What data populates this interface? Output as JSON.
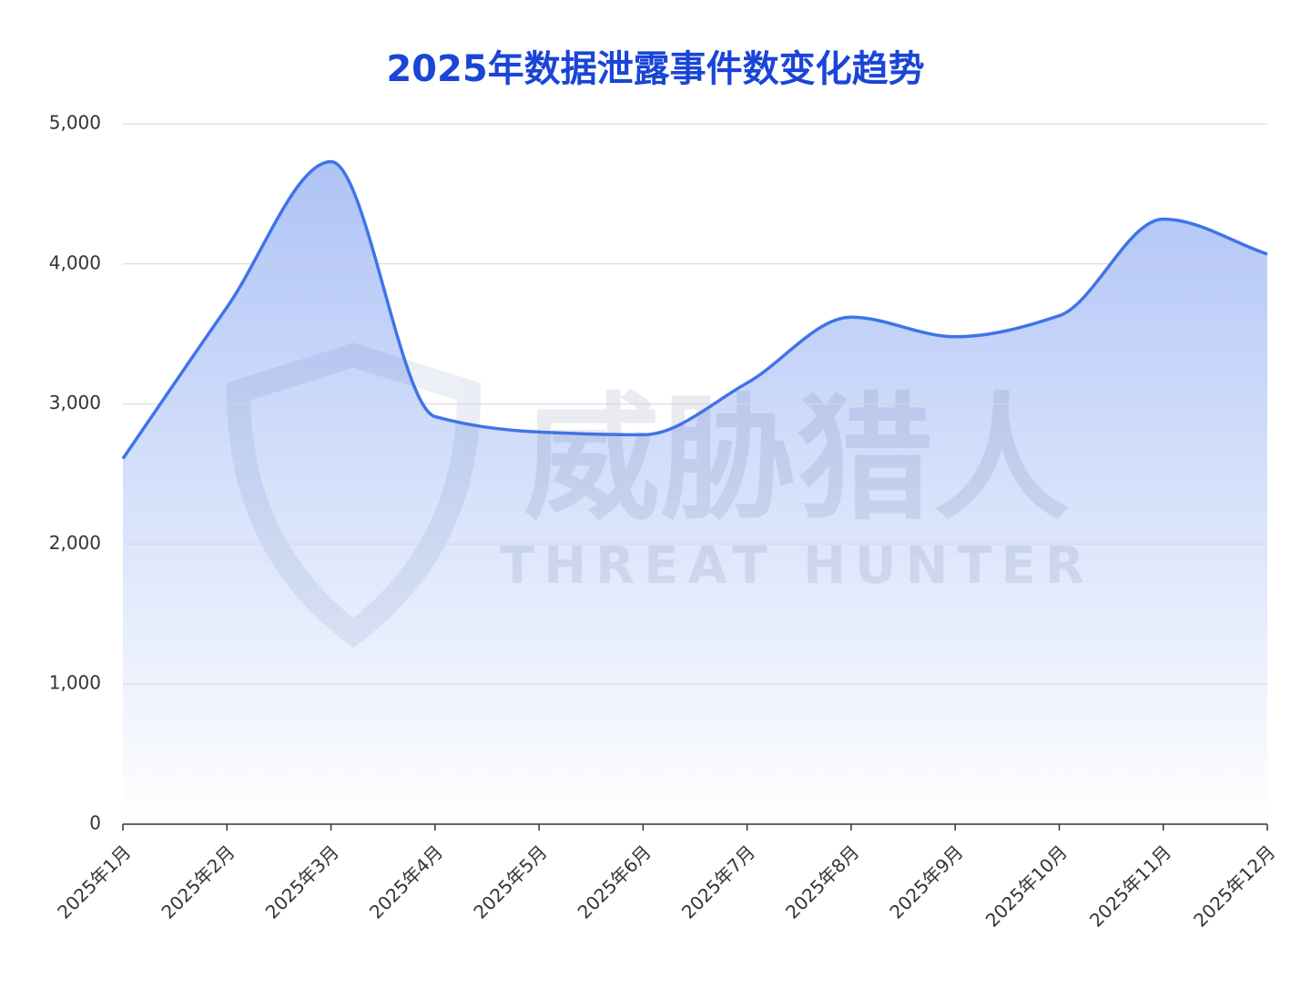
{
  "chart_data": {
    "type": "area",
    "title": "2025年数据泄露事件数变化趋势",
    "categories": [
      "2025年1月",
      "2025年2月",
      "2025年3月",
      "2025年4月",
      "2025年5月",
      "2025年6月",
      "2025年7月",
      "2025年8月",
      "2025年9月",
      "2025年10月",
      "2025年11月",
      "2025年12月"
    ],
    "values": [
      2610,
      3690,
      4730,
      2910,
      2800,
      2780,
      3150,
      3620,
      3480,
      3630,
      4320,
      4070
    ],
    "color": "#3f74e8",
    "ylim": [
      0,
      5000
    ],
    "yticks": [
      0,
      {
        "value": 1000,
        "label": "1,000"
      },
      {
        "value": 2000,
        "label": "2,000"
      },
      {
        "value": 3000,
        "label": "3,000"
      },
      {
        "value": 4000,
        "label": "4,000"
      },
      {
        "value": 5000,
        "label": "5,000"
      }
    ],
    "grid": true,
    "smooth": true,
    "watermark": [
      "威胁猎人",
      "THREAT HUNTER"
    ]
  }
}
